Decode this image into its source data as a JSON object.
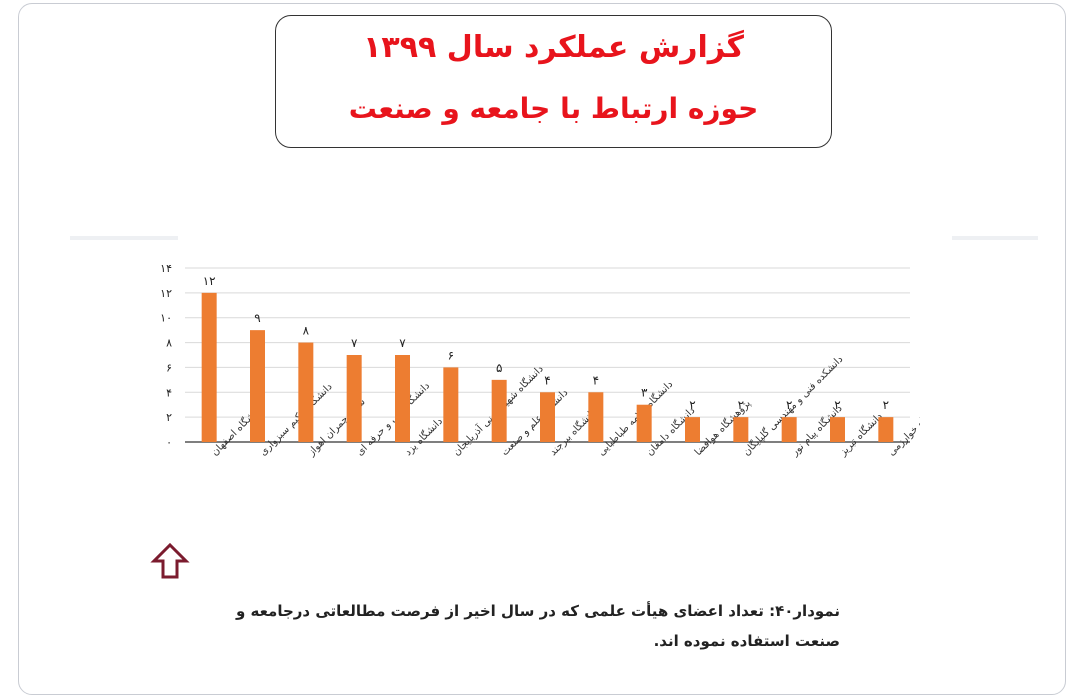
{
  "title": {
    "line1": "گزارش عملکرد سال ۱۳۹۹",
    "line2": "حوزه ارتباط با جامعه و صنعت"
  },
  "caption": {
    "number": "نمودار۴۰:",
    "text": "تعداد اعضای هیأت علمی که در سال اخیر از فرصت مطالعاتی درجامعه و صنعت استفاده نموده اند."
  },
  "colors": {
    "bar": "#ed7d31",
    "title": "#e8141c",
    "arrow": "#7b1b2e"
  },
  "arrow_icon": "up-arrow-icon",
  "chart_data": {
    "type": "bar",
    "categories": [
      "دانشگاه اصفهان",
      "دانشگاه حکیم سبزواری",
      "شهید چمران اهواز",
      "دانشگاه فنی و حرفه ای",
      "دانشگاه یزد",
      "دانشگاه شهید مدنی آذربایجان",
      "دانشگاه علم و صنعت",
      "دانشگاه بیرجند",
      "دانشگاه علامه طباطبایی",
      "دانشگاه دامغان",
      "پژوهشگاه هوافضا",
      "دانشکده فنی و مهندسی گلپایگان",
      "دانشگاه پیام نور",
      "دانشگاه تبریز",
      "دانشگاه خوارزمی"
    ],
    "values": [
      12,
      9,
      8,
      7,
      7,
      6,
      5,
      4,
      4,
      3,
      2,
      2,
      2,
      2,
      2
    ],
    "value_labels": [
      "۱۲",
      "۹",
      "۸",
      "۷",
      "۷",
      "۶",
      "۵",
      "۴",
      "۴",
      "۳",
      "۲",
      "۲",
      "۲",
      "۲",
      "۲"
    ],
    "y_ticks": [
      0,
      2,
      4,
      6,
      8,
      10,
      12,
      14
    ],
    "y_tick_labels": [
      "۰",
      "۲",
      "۴",
      "۶",
      "۸",
      "۱۰",
      "۱۲",
      "۱۴"
    ],
    "ylim": [
      0,
      14
    ],
    "grid": true,
    "legend": "none"
  }
}
